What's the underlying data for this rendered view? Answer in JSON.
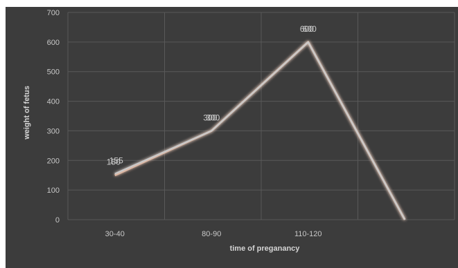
{
  "chart_data": {
    "type": "line",
    "categories": [
      "30-40",
      "80-90",
      "110-120",
      ""
    ],
    "series": [
      {
        "values": [
          150,
          300,
          600,
          0
        ],
        "color": "#e3b39a",
        "data_labels": [
          "150",
          "300",
          "600",
          ""
        ]
      },
      {
        "values": [
          155,
          300,
          600,
          0
        ],
        "color": "#c9c9c9",
        "data_labels": [
          "155",
          "300",
          "600",
          ""
        ]
      }
    ],
    "xlabel": "time of preganancy",
    "ylabel": "weight of fetus",
    "ylim": [
      0,
      700
    ],
    "yticks": [
      0,
      100,
      200,
      300,
      400,
      500,
      600,
      700
    ],
    "grid": true,
    "colors": {
      "background": "#3c3c3c",
      "grid": "#595959",
      "text": "#c8c8c8"
    }
  }
}
